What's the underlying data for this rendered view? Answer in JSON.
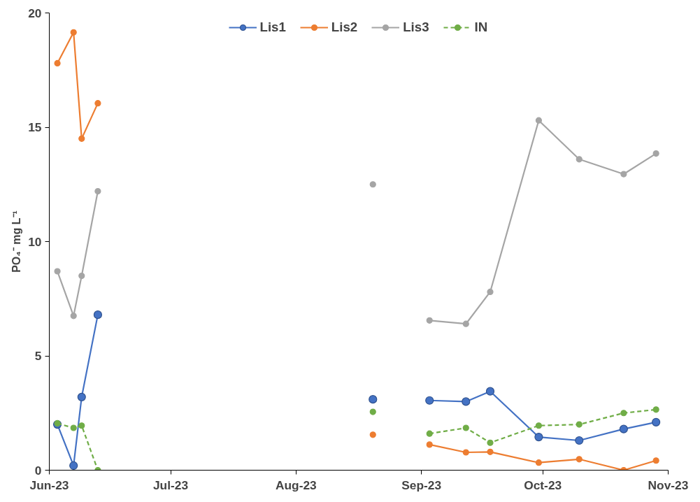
{
  "chart_data": {
    "type": "line",
    "ylabel": "PO₄⁻ mg L⁻¹",
    "x": [
      "2023-06-03",
      "2023-06-07",
      "2023-06-09",
      "2023-06-13",
      "2023-07-15",
      "2023-08-20",
      "2023-08-27",
      "2023-09-03",
      "2023-09-12",
      "2023-09-18",
      "2023-09-30",
      "2023-10-10",
      "2023-10-21",
      "2023-10-29"
    ],
    "series": [
      {
        "name": "Lis1",
        "color": "#4472c4",
        "values": [
          2.0,
          0.2,
          3.2,
          6.8,
          null,
          3.1,
          null,
          3.05,
          3.0,
          3.45,
          1.45,
          1.3,
          1.8,
          2.1
        ]
      },
      {
        "name": "Lis2",
        "color": "#ed7d31",
        "values": [
          17.8,
          19.15,
          14.5,
          16.05,
          null,
          1.55,
          null,
          1.12,
          0.78,
          0.8,
          0.33,
          0.48,
          0.0,
          0.42
        ]
      },
      {
        "name": "Lis3",
        "color": "#a5a5a5",
        "values": [
          8.7,
          6.75,
          8.5,
          12.2,
          null,
          12.5,
          null,
          6.55,
          6.4,
          7.8,
          15.3,
          13.6,
          12.95,
          13.85
        ]
      },
      {
        "name": "IN",
        "color": "#70ad47",
        "line_style": "dashed",
        "values": [
          2.05,
          1.85,
          1.95,
          0.0,
          null,
          2.55,
          null,
          1.6,
          1.85,
          1.2,
          1.95,
          2.0,
          2.5,
          2.65
        ]
      }
    ],
    "xlim": [
      "2023-06-01",
      "2023-11-01"
    ],
    "xticks": [
      {
        "value": "2023-06-01",
        "label": "Jun-23"
      },
      {
        "value": "2023-07-01",
        "label": "Jul-23"
      },
      {
        "value": "2023-08-01",
        "label": "Aug-23"
      },
      {
        "value": "2023-09-01",
        "label": "Sep-23"
      },
      {
        "value": "2023-10-01",
        "label": "Oct-23"
      },
      {
        "value": "2023-11-01",
        "label": "Nov-23"
      }
    ],
    "ylim": [
      0,
      20
    ],
    "yticks": [
      0,
      5,
      10,
      15,
      20
    ],
    "grid": false,
    "legend": "top",
    "marker": "circle",
    "line_style": "solid"
  }
}
